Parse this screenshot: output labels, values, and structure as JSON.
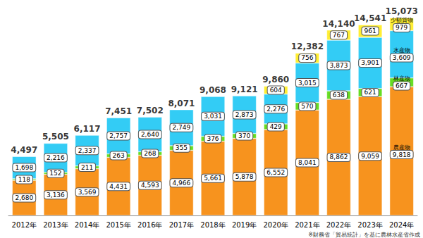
{
  "chart_data": {
    "type": "bar",
    "stacked": true,
    "data_labels": true,
    "tick_labels": "x",
    "grid": false,
    "categories": [
      "2012年",
      "2013年",
      "2014年",
      "2015年",
      "2016年",
      "2017年",
      "2018年",
      "2019年",
      "2020年",
      "2021年",
      "2022年",
      "2023年",
      "2024年"
    ],
    "series": [
      {
        "name": "農産物",
        "color": "#F7931E",
        "values": [
          2680,
          3136,
          3569,
          4431,
          4593,
          4966,
          5661,
          5878,
          6552,
          8041,
          8862,
          9059,
          9818
        ],
        "value_labels": [
          "2,680",
          "3,136",
          "3,569",
          "4,431",
          "4,593",
          "4,966",
          "5,661",
          "5,878",
          "6,552",
          "8,041",
          "8,862",
          "9,059",
          "9,818"
        ]
      },
      {
        "name": "林産物",
        "color": "#66DD22",
        "values": [
          118,
          152,
          211,
          263,
          268,
          355,
          376,
          370,
          429,
          570,
          638,
          621,
          667
        ],
        "value_labels": [
          "118",
          "152",
          "211",
          "263",
          "268",
          "355",
          "376",
          "370",
          "429",
          "570",
          "638",
          "621",
          "667"
        ]
      },
      {
        "name": "水産物",
        "color": "#33CCF5",
        "values": [
          1698,
          2216,
          2337,
          2757,
          2640,
          2749,
          3031,
          2873,
          2276,
          3015,
          3873,
          3901,
          3609
        ],
        "value_labels": [
          "1,698",
          "2,216",
          "2,337",
          "2,757",
          "2,640",
          "2,749",
          "3,031",
          "2,873",
          "2,276",
          "3,015",
          "3,873",
          "3,901",
          "3,609"
        ]
      },
      {
        "name": "少額貨物",
        "color": "#FFEE33",
        "values": [
          null,
          null,
          null,
          null,
          null,
          null,
          null,
          null,
          604,
          756,
          767,
          961,
          979
        ],
        "value_labels": [
          null,
          null,
          null,
          null,
          null,
          null,
          null,
          null,
          "604",
          "756",
          "767",
          "961",
          "979"
        ]
      }
    ],
    "totals": [
      4497,
      5505,
      6117,
      7451,
      7502,
      8071,
      9068,
      9121,
      9860,
      12382,
      14140,
      14541,
      15073
    ],
    "total_labels": [
      "4,497",
      "5,505",
      "6,117",
      "7,451",
      "7,502",
      "8,071",
      "9,068",
      "9,121",
      "9,860",
      "12,382",
      "14,140",
      "14,541",
      "15,073"
    ],
    "ylim": [
      0,
      16000
    ],
    "yticks": [
      0,
      16000
    ],
    "note": "※財務省「貿易統計」を基に農林水産省作成"
  }
}
